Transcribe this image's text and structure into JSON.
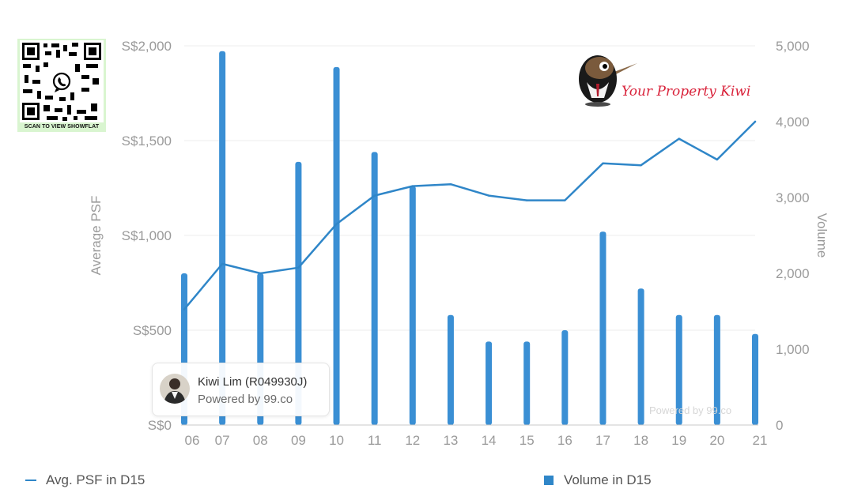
{
  "qr": {
    "caption": "SCAN TO VIEW SHOWFLAT",
    "icon": "whatsapp-icon"
  },
  "brand": {
    "text": "Your Property Kiwi",
    "color": "#d9233b"
  },
  "agent_card": {
    "name": "Kiwi Lim (R049930J)",
    "powered_by": "Powered by 99.co"
  },
  "watermark": "Powered by 99.co",
  "chart_data": {
    "type": "bar+line",
    "categories": [
      "06",
      "07",
      "08",
      "09",
      "10",
      "11",
      "12",
      "13",
      "14",
      "15",
      "16",
      "17",
      "18",
      "19",
      "20",
      "21"
    ],
    "series": [
      {
        "name": "Avg. PSF in D15",
        "type": "line",
        "axis": "left",
        "values": [
          610,
          850,
          800,
          830,
          1060,
          1210,
          1260,
          1270,
          1210,
          1185,
          1185,
          1380,
          1370,
          1510,
          1400,
          1600
        ]
      },
      {
        "name": "Volume in D15",
        "type": "bar",
        "axis": "right",
        "values": [
          2000,
          4930,
          2000,
          3470,
          4720,
          3600,
          3150,
          1450,
          1100,
          1100,
          1250,
          2550,
          1800,
          1450,
          1450,
          1200
        ]
      }
    ],
    "ylabel_left": "Average PSF",
    "ylabel_right": "Volume",
    "ylim_left": [
      0,
      2000
    ],
    "ylim_right": [
      0,
      5000
    ],
    "yticks_left": [
      "S$0",
      "S$500",
      "S$1,000",
      "S$1,500",
      "S$2,000"
    ],
    "yticks_right": [
      "0",
      "1,000",
      "2,000",
      "3,000",
      "4,000",
      "5,000"
    ],
    "grid": true,
    "legend_position": "bottom",
    "colors": {
      "line": "#2f86c8",
      "bar": "#3a8fd4"
    }
  }
}
